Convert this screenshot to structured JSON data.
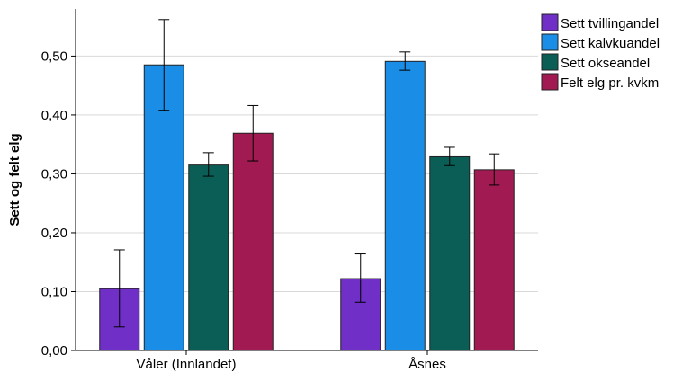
{
  "chart_data": {
    "type": "bar",
    "ylabel": "Sett og felt elg",
    "xlabel": "",
    "ylim": [
      0,
      0.58
    ],
    "yticks": [
      "0,00",
      "0,10",
      "0,20",
      "0,30",
      "0,40",
      "0,50"
    ],
    "ytick_values": [
      0,
      0.1,
      0.2,
      0.3,
      0.4,
      0.5
    ],
    "grid": "horizontal",
    "legend_position": "top-right",
    "categories": [
      "Våler (Innlandet)",
      "Åsnes"
    ],
    "series": [
      {
        "name": "Sett tvillingandel",
        "color": "#7030c8",
        "values": [
          0.105,
          0.122
        ],
        "err_low": [
          0.04,
          0.082
        ],
        "err_high": [
          0.171,
          0.164
        ]
      },
      {
        "name": "Sett kalvkuandel",
        "color": "#1a8ee6",
        "values": [
          0.485,
          0.491
        ],
        "err_low": [
          0.408,
          0.476
        ],
        "err_high": [
          0.562,
          0.507
        ]
      },
      {
        "name": "Sett okseandel",
        "color": "#0b5e56",
        "values": [
          0.315,
          0.329
        ],
        "err_low": [
          0.296,
          0.314
        ],
        "err_high": [
          0.336,
          0.345
        ]
      },
      {
        "name": "Felt elg pr. kvkm",
        "color": "#a11a52",
        "values": [
          0.369,
          0.307
        ],
        "err_low": [
          0.322,
          0.281
        ],
        "err_high": [
          0.416,
          0.334
        ]
      }
    ]
  }
}
